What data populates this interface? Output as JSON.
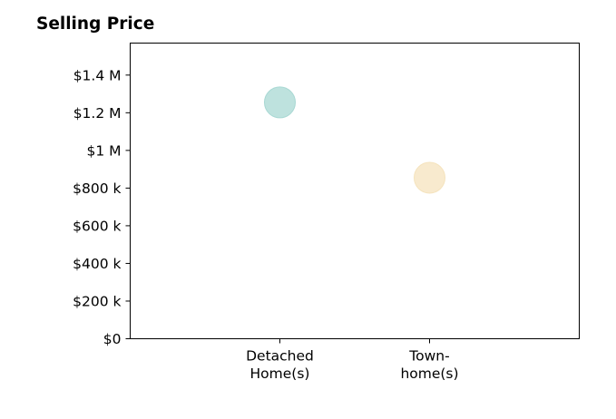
{
  "chart_data": {
    "type": "scatter",
    "title": "Selling Price",
    "xlabel": "",
    "ylabel": "",
    "categories": [
      [
        "Detached",
        "Home(s)"
      ],
      [
        "Town-",
        "home(s)"
      ]
    ],
    "values": [
      1255000,
      855000
    ],
    "colors": [
      "#a8d8d3",
      "#f5e3bd"
    ],
    "ylim": [
      0,
      1570000
    ],
    "yticks": [
      0,
      200000,
      400000,
      600000,
      800000,
      1000000,
      1200000,
      1400000
    ],
    "ytick_labels": [
      "$0",
      "$200 k",
      "$400 k",
      "$600 k",
      "$800 k",
      "$1 M",
      "$1.2 M",
      "$1.4 M"
    ],
    "x_positions": [
      1,
      2
    ],
    "xlim": [
      0,
      3
    ],
    "grid": false,
    "legend": "none"
  }
}
